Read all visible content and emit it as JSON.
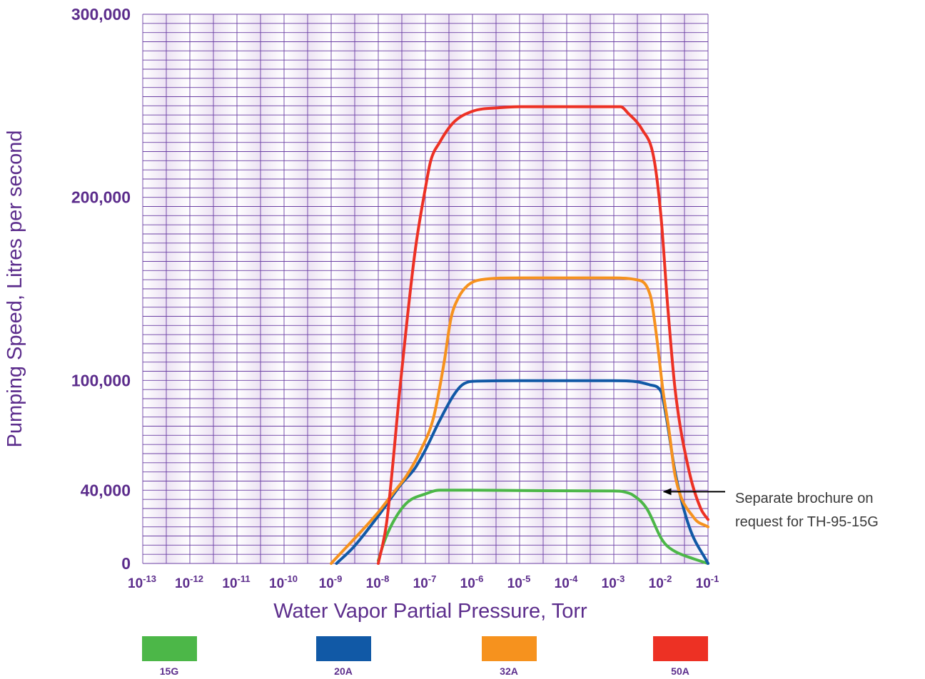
{
  "chart_data": {
    "type": "line",
    "xlabel": "Water Vapor Partial Pressure, Torr",
    "ylabel": "Pumping Speed, Litres per second",
    "x_scale": "log",
    "xlim": [
      1e-13,
      0.1
    ],
    "ylim": [
      0,
      300000
    ],
    "grid": true,
    "legend_position": "bottom",
    "x_ticks": [
      {
        "base": "10",
        "exp": "-13"
      },
      {
        "base": "10",
        "exp": "-12"
      },
      {
        "base": "10",
        "exp": "-11"
      },
      {
        "base": "10",
        "exp": "-10"
      },
      {
        "base": "10",
        "exp": "-9"
      },
      {
        "base": "10",
        "exp": "-8"
      },
      {
        "base": "10",
        "exp": "-7"
      },
      {
        "base": "10",
        "exp": "-6"
      },
      {
        "base": "10",
        "exp": "-5"
      },
      {
        "base": "10",
        "exp": "-4"
      },
      {
        "base": "10",
        "exp": "-3"
      },
      {
        "base": "10",
        "exp": "-2"
      },
      {
        "base": "10",
        "exp": "-1"
      }
    ],
    "y_ticks": [
      {
        "value": 0,
        "label": "0"
      },
      {
        "value": 40000,
        "label": "40,000"
      },
      {
        "value": 100000,
        "label": "100,000"
      },
      {
        "value": 200000,
        "label": "200,000"
      },
      {
        "value": 300000,
        "label": "300,000"
      }
    ],
    "series": [
      {
        "name": "15G",
        "color": "#4cb748",
        "x": [
          1e-08,
          1.3e-08,
          2e-08,
          4e-08,
          1e-07,
          2e-07,
          1e-06,
          1e-05,
          0.0001,
          0.001,
          0.0016,
          0.0025,
          0.005,
          0.01,
          0.013,
          0.02,
          0.05,
          0.1
        ],
        "y": [
          1500,
          11000,
          22000,
          33000,
          38000,
          40000,
          40000,
          39800,
          39700,
          39600,
          39200,
          37500,
          30000,
          14000,
          10000,
          6500,
          2500,
          0
        ]
      },
      {
        "name": "20A",
        "color": "#1159a6",
        "x": [
          1.3e-09,
          3e-09,
          1e-08,
          3e-08,
          6e-08,
          1e-07,
          2e-07,
          4e-07,
          6e-07,
          1e-06,
          1e-05,
          0.0001,
          0.001,
          0.003,
          0.006,
          0.01,
          0.013,
          0.02,
          0.04,
          0.1
        ],
        "y": [
          0,
          9000,
          26000,
          43000,
          52000,
          62000,
          78000,
          92000,
          97500,
          99500,
          99800,
          99800,
          99800,
          99300,
          97500,
          94000,
          80000,
          50000,
          20000,
          0
        ]
      },
      {
        "name": "32A",
        "color": "#f6921e",
        "x": [
          1e-09,
          1e-08,
          2e-08,
          4e-08,
          8e-08,
          1.5e-07,
          2.5e-07,
          3.5e-07,
          5e-07,
          8e-07,
          1.5e-06,
          1e-05,
          0.0001,
          0.001,
          0.003,
          0.006,
          0.008,
          0.011,
          0.015,
          0.02,
          0.05,
          0.1
        ],
        "y": [
          0,
          28000,
          38000,
          48000,
          62000,
          80000,
          110000,
          134000,
          145000,
          152000,
          155000,
          156000,
          156000,
          156000,
          155000,
          146000,
          125000,
          95000,
          72000,
          48000,
          25000,
          20000
        ]
      },
      {
        "name": "50A",
        "color": "#ed3124",
        "x": [
          1e-08,
          1.5e-08,
          3e-08,
          6e-08,
          1e-07,
          1.3e-07,
          2e-07,
          4e-07,
          1e-06,
          4e-06,
          1e-05,
          0.0001,
          0.001,
          0.0014,
          0.002,
          0.004,
          0.007,
          0.01,
          0.014,
          0.02,
          0.04,
          0.07,
          0.1
        ],
        "y": [
          0,
          22000,
          100000,
          170000,
          205000,
          220000,
          230000,
          241000,
          247000,
          249000,
          249500,
          249500,
          249500,
          249500,
          246000,
          237000,
          222000,
          190000,
          140000,
          95000,
          50000,
          30000,
          24000
        ]
      }
    ],
    "annotation": {
      "line1": "Separate brochure on",
      "line2": "request for TH-95-15G",
      "points_to_series": "15G",
      "arrow_x": 0.004,
      "arrow_y": 40000
    }
  },
  "colors": {
    "text": "#5c2d8c",
    "grid": "#6a3ea3",
    "plot_bg_light": "#ffffff",
    "plot_bg_dark": "#ece2f3"
  }
}
